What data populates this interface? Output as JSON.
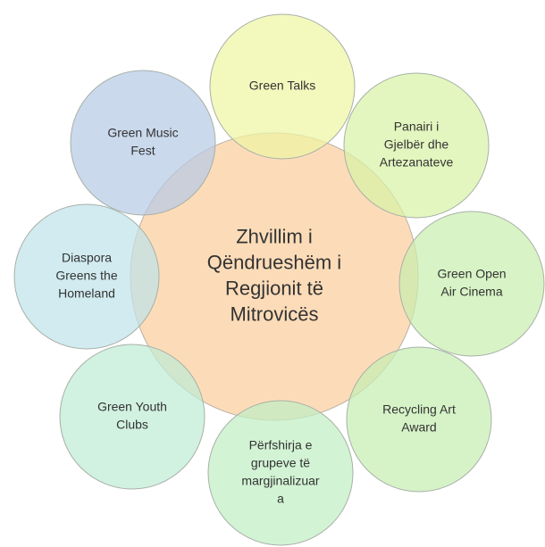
{
  "center": {
    "lines": [
      "Zhvillim i",
      "Qëndrueshëm i",
      "Regjionit të",
      "Mitrovicës"
    ]
  },
  "nodes": [
    {
      "lines": [
        "Green Talks"
      ]
    },
    {
      "lines": [
        "Panairi i",
        "Gjelbër dhe",
        "Artezanateve"
      ]
    },
    {
      "lines": [
        "Green Open",
        "Air Cinema"
      ]
    },
    {
      "lines": [
        "Recycling Art",
        "Award"
      ]
    },
    {
      "lines": [
        "Përfshirja e",
        "grupeve të",
        "margjinalizuar",
        "a"
      ]
    },
    {
      "lines": [
        "Green Youth",
        "Clubs"
      ]
    },
    {
      "lines": [
        "Diaspora",
        "Greens the",
        "Homeland"
      ]
    },
    {
      "lines": [
        "Green Music",
        "Fest"
      ]
    }
  ]
}
